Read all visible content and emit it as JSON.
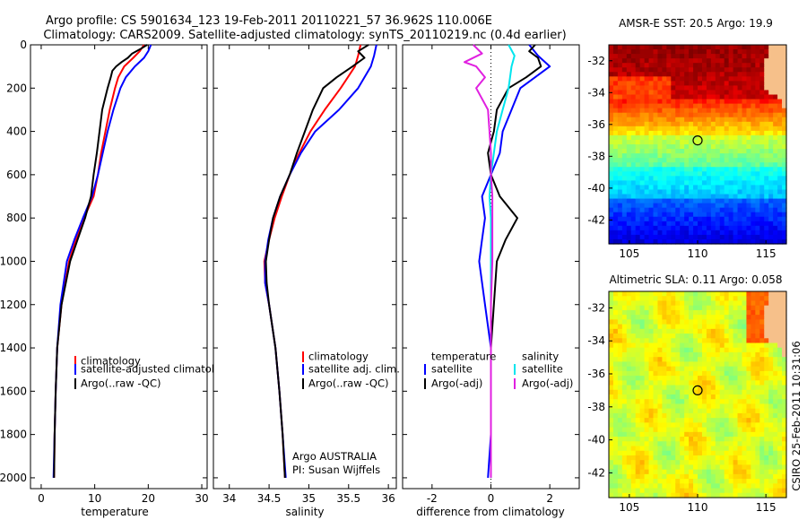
{
  "header": {
    "title_line1": "Argo profile: CS 5901634_123 19-Feb-2011 20110221_57 36.962S 110.006E",
    "title_line2": "Climatology: CARS2009. Satellite-adjusted climatology: synTS_20110219.nc (0.4d earlier)"
  },
  "side_stamp": "CSIRO 25-Feb-2011 10:31:06",
  "colors": {
    "climatology": "#ff0000",
    "satellite": "#0000ff",
    "argo": "#000000",
    "satellite_salinity": "#00e5ee",
    "argo_salinity": "#e020e0",
    "map_float_marker": "#000000"
  },
  "chart_data": [
    {
      "id": "temperature",
      "type": "line",
      "xlabel": "temperature",
      "ylabel": "",
      "xlim": [
        -2,
        31
      ],
      "ylim": [
        2050,
        0
      ],
      "xticks": [
        0,
        10,
        20,
        30
      ],
      "yticks": [
        0,
        200,
        400,
        600,
        800,
        1000,
        1200,
        1400,
        1600,
        1800,
        2000
      ],
      "legend": [
        "climatology",
        "satellite-adjusted climatology",
        "Argo(..raw -QC)"
      ],
      "legend_position": "lower-right",
      "series": [
        {
          "name": "climatology",
          "color": "#ff0000",
          "depth": [
            0,
            30,
            60,
            100,
            150,
            200,
            300,
            400,
            500,
            600,
            700,
            800,
            900,
            1000,
            1200,
            1400,
            1600,
            1800,
            2000
          ],
          "values": [
            19.2,
            18.4,
            17.2,
            15.5,
            14.4,
            13.8,
            12.8,
            12.0,
            11.2,
            10.6,
            9.8,
            8.0,
            6.5,
            5.2,
            3.8,
            3.0,
            2.7,
            2.5,
            2.4
          ]
        },
        {
          "name": "satellite-adjusted climatology",
          "color": "#0000ff",
          "depth": [
            0,
            30,
            60,
            100,
            150,
            200,
            300,
            400,
            500,
            600,
            700,
            800,
            900,
            1000,
            1200,
            1400,
            1600,
            1800,
            2000
          ],
          "values": [
            20.5,
            20.0,
            19.2,
            17.5,
            15.8,
            14.8,
            13.5,
            12.4,
            11.5,
            10.6,
            9.5,
            7.8,
            6.2,
            4.8,
            3.6,
            3.0,
            2.7,
            2.5,
            2.3
          ]
        },
        {
          "name": "Argo(..raw -QC)",
          "color": "#000000",
          "depth": [
            0,
            20,
            40,
            60,
            80,
            100,
            120,
            150,
            200,
            300,
            400,
            500,
            600,
            700,
            800,
            900,
            1000,
            1200,
            1400,
            1600,
            1800,
            2000
          ],
          "values": [
            19.8,
            18.5,
            17.0,
            16.2,
            15.0,
            14.0,
            13.3,
            13.0,
            12.4,
            11.4,
            10.9,
            10.4,
            9.8,
            9.3,
            8.2,
            6.8,
            5.4,
            3.8,
            3.0,
            2.7,
            2.5,
            2.4
          ]
        }
      ]
    },
    {
      "id": "salinity",
      "type": "line",
      "xlabel": "salinity",
      "ylabel": "",
      "xlim": [
        33.8,
        36.1
      ],
      "ylim": [
        2050,
        0
      ],
      "xticks": [
        34,
        34.5,
        35,
        35.5,
        36
      ],
      "legend": [
        "climatology",
        "satellite adj. clim.",
        "Argo(..raw -QC)"
      ],
      "legend_position": "lower-right",
      "annotation_line1": "Argo AUSTRALIA",
      "annotation_line2": "PI: Susan Wijffels",
      "series": [
        {
          "name": "climatology",
          "color": "#ff0000",
          "depth": [
            0,
            50,
            100,
            200,
            300,
            400,
            500,
            600,
            700,
            800,
            900,
            1000,
            1100,
            1200,
            1400,
            1600,
            1800,
            2000
          ],
          "values": [
            35.65,
            35.62,
            35.58,
            35.4,
            35.2,
            35.02,
            34.88,
            34.76,
            34.66,
            34.57,
            34.5,
            34.44,
            34.45,
            34.5,
            34.58,
            34.63,
            34.67,
            34.7
          ]
        },
        {
          "name": "satellite adj. clim.",
          "color": "#0000ff",
          "depth": [
            0,
            50,
            100,
            200,
            300,
            400,
            500,
            600,
            700,
            800,
            900,
            1000,
            1100,
            1200,
            1400,
            1600,
            1800,
            2000
          ],
          "values": [
            35.85,
            35.82,
            35.78,
            35.62,
            35.38,
            35.08,
            34.9,
            34.76,
            34.64,
            34.55,
            34.49,
            34.45,
            34.45,
            34.5,
            34.58,
            34.63,
            34.67,
            34.71
          ]
        },
        {
          "name": "Argo(..raw -QC)",
          "color": "#000000",
          "depth": [
            0,
            30,
            60,
            100,
            150,
            200,
            300,
            400,
            500,
            600,
            700,
            800,
            900,
            1000,
            1100,
            1200,
            1400,
            1600,
            1800,
            2000
          ],
          "values": [
            35.75,
            35.62,
            35.7,
            35.55,
            35.35,
            35.18,
            35.05,
            34.95,
            34.85,
            34.76,
            34.64,
            34.55,
            34.5,
            34.46,
            34.47,
            34.5,
            34.58,
            34.63,
            34.67,
            34.7
          ]
        }
      ]
    },
    {
      "id": "difference",
      "type": "line",
      "xlabel": "difference from climatology",
      "ylabel": "",
      "xlim": [
        -3,
        3
      ],
      "ylim": [
        2050,
        0
      ],
      "xticks": [
        -2,
        0,
        2
      ],
      "legend_left_title": "temperature",
      "legend_left": [
        "satellite",
        "Argo(-adj)"
      ],
      "legend_right_title": "salinity",
      "legend_right": [
        "satellite",
        "Argo(-adj)"
      ],
      "legend_position": "lower-center",
      "series": [
        {
          "name": "temperature satellite",
          "color": "#0000ff",
          "depth": [
            0,
            50,
            100,
            200,
            300,
            400,
            500,
            600,
            700,
            800,
            900,
            1000,
            1200,
            1400,
            1600,
            1800,
            2000
          ],
          "values": [
            1.3,
            1.6,
            2.0,
            1.0,
            0.7,
            0.4,
            0.3,
            0.0,
            -0.3,
            -0.2,
            -0.3,
            -0.4,
            -0.2,
            0.0,
            0.0,
            0.0,
            -0.1
          ]
        },
        {
          "name": "temperature Argo(-adj)",
          "color": "#000000",
          "depth": [
            0,
            30,
            60,
            100,
            150,
            200,
            300,
            400,
            500,
            600,
            700,
            800,
            900,
            1000,
            1200,
            1400,
            1600,
            1800,
            2000
          ],
          "values": [
            1.5,
            1.3,
            1.6,
            1.7,
            1.2,
            0.6,
            0.2,
            0.1,
            -0.1,
            0.0,
            0.3,
            0.9,
            0.5,
            0.2,
            0.1,
            0.0,
            0.0,
            0.0,
            0.0
          ]
        },
        {
          "name": "salinity satellite",
          "color": "#00e5ee",
          "depth": [
            0,
            50,
            100,
            200,
            300,
            400,
            500,
            600,
            700,
            800,
            900,
            1000,
            1200,
            1400,
            1600,
            1800,
            2000
          ],
          "values": [
            0.6,
            0.8,
            0.7,
            0.6,
            0.4,
            0.2,
            0.1,
            0.0,
            -0.05,
            0.0,
            0.0,
            0.0,
            0.0,
            0.0,
            0.0,
            0.0,
            0.0
          ]
        },
        {
          "name": "salinity Argo(-adj)",
          "color": "#e020e0",
          "depth": [
            0,
            40,
            80,
            100,
            150,
            200,
            300,
            400,
            500,
            600,
            700,
            800,
            900,
            1000,
            1200,
            1400,
            1600,
            1800,
            2000
          ],
          "values": [
            -0.6,
            -0.3,
            -0.9,
            -0.5,
            -0.2,
            -0.5,
            -0.1,
            -0.05,
            0.0,
            0.0,
            0.05,
            0.05,
            0.05,
            0.05,
            0.0,
            0.0,
            0.0,
            0.0,
            0.0
          ]
        }
      ]
    },
    {
      "id": "sst-map",
      "type": "heatmap",
      "title": "AMSR-E SST: 20.5 Argo: 19.9",
      "xlim": [
        103.5,
        116.5
      ],
      "ylim": [
        -43.5,
        -31
      ],
      "xticks": [
        105,
        110,
        115
      ],
      "yticks": [
        -32,
        -34,
        -36,
        -38,
        -40,
        -42
      ],
      "float_position": [
        110.0,
        -37.0
      ],
      "zones": [
        {
          "lat_north": -31.0,
          "lat_south": -34.5,
          "description": "dark red / red, warm"
        },
        {
          "lat_north": -34.5,
          "lat_south": -36.8,
          "description": "orange / yellow"
        },
        {
          "lat_north": -36.8,
          "lat_south": -38.8,
          "description": "green"
        },
        {
          "lat_north": -38.8,
          "lat_south": -40.8,
          "description": "cyan / light blue"
        },
        {
          "lat_north": -40.8,
          "lat_south": -43.5,
          "description": "blue / dark blue, cold"
        }
      ]
    },
    {
      "id": "sla-map",
      "type": "heatmap",
      "title": "Altimetric SLA: 0.11 Argo: 0.058",
      "xlim": [
        103.5,
        116.5
      ],
      "ylim": [
        -43.5,
        -31
      ],
      "xticks": [
        105,
        110,
        115
      ],
      "yticks": [
        -32,
        -34,
        -36,
        -38,
        -40,
        -42
      ],
      "float_position": [
        110.0,
        -37.0
      ],
      "background": "green-yellow speckle"
    }
  ]
}
